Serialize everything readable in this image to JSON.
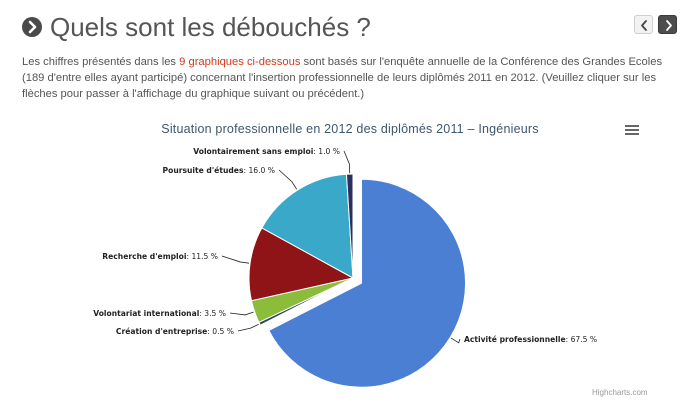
{
  "header": {
    "title": "Quels sont les débouchés ?",
    "prev_label": "‹",
    "next_label": "›"
  },
  "intro": {
    "text_before": "Les chiffres présentés dans les ",
    "link_text": "9 graphiques ci-dessous",
    "text_after": " sont basés sur l'enquête annuelle de la Conférence des Grandes Ecoles (189 d'entre elles ayant participé) concernant l'insertion professionnelle de leurs diplômés 2011 en 2012. (Veuillez cliquer sur les flèches pour passer à l'affichage du graphique suivant ou précédent.)"
  },
  "chart_data": {
    "type": "pie",
    "title": "Situation professionnelle en 2012 des diplômés 2011 – Ingénieurs",
    "slices": [
      {
        "label": "Activité professionnelle",
        "value": 67.5,
        "display": "67.5 %",
        "color": "#4a7fd4",
        "sliced": true
      },
      {
        "label": "Création d'entreprise",
        "value": 0.5,
        "display": "0.5 %",
        "color": "#2f4a5e",
        "sliced": false
      },
      {
        "label": "Volontariat international",
        "value": 3.5,
        "display": "3.5 %",
        "color": "#8bbc3a",
        "sliced": false
      },
      {
        "label": "Recherche d'emploi",
        "value": 11.5,
        "display": "11.5 %",
        "color": "#8f1418",
        "sliced": false
      },
      {
        "label": "Poursuite d'études",
        "value": 16.0,
        "display": "16.0 %",
        "color": "#3aa8c8",
        "sliced": false
      },
      {
        "label": "Volontairement sans emploi",
        "value": 1.0,
        "display": "1.0 %",
        "color": "#2b2f5e",
        "sliced": false
      }
    ],
    "credits": "Highcharts.com"
  },
  "colors": {
    "link": "#d03a1c",
    "title_color": "#3e576f",
    "text": "#555555"
  },
  "icons": {
    "title_icon": "chevron-circle-right-icon",
    "menu_icon": "hamburger-menu-icon"
  }
}
